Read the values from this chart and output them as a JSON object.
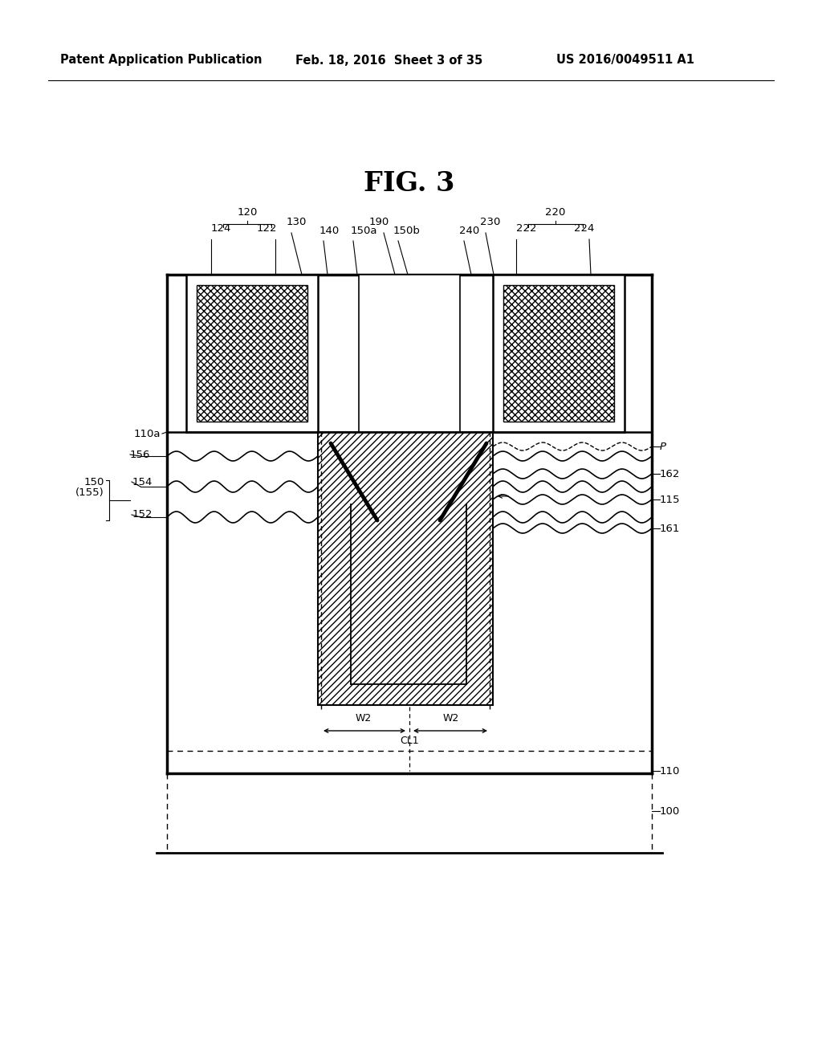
{
  "bg_color": "#ffffff",
  "header_left": "Patent Application Publication",
  "header_mid": "Feb. 18, 2016  Sheet 3 of 35",
  "header_right": "US 2016/0049511 A1",
  "fig_title": "FIG. 3",
  "lw_thick": 2.5,
  "lw_med": 1.5,
  "lw_thin": 0.9,
  "lfs": 9.5
}
